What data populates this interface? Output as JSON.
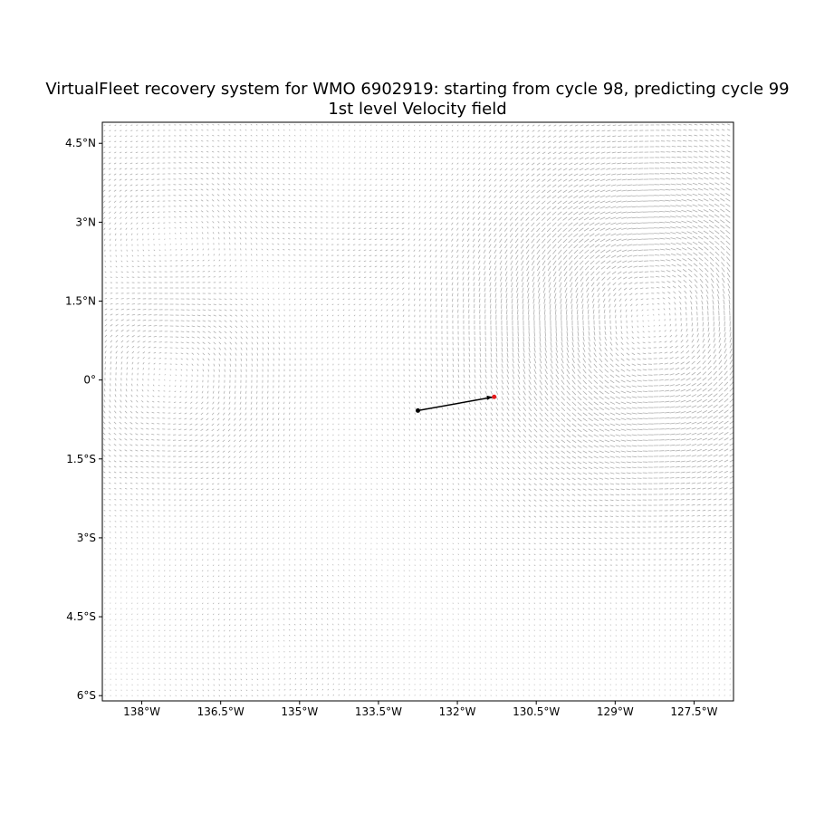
{
  "title_line1": "VirtualFleet recovery system for WMO 6902919: starting from cycle 98, predicting cycle 99",
  "title_line2": "1st level Velocity field",
  "map": {
    "lon_range": [
      -138.75,
      -126.75
    ],
    "lat_range": [
      -6.1,
      4.9
    ],
    "x_ticks": [
      {
        "value": -138.0,
        "label": "138°W"
      },
      {
        "value": -136.5,
        "label": "136.5°W"
      },
      {
        "value": -135.0,
        "label": "135°W"
      },
      {
        "value": -133.5,
        "label": "133.5°W"
      },
      {
        "value": -132.0,
        "label": "132°W"
      },
      {
        "value": -130.5,
        "label": "130.5°W"
      },
      {
        "value": -129.0,
        "label": "129°W"
      },
      {
        "value": -127.5,
        "label": "127.5°W"
      }
    ],
    "y_ticks": [
      {
        "value": 4.5,
        "label": "4.5°N"
      },
      {
        "value": 3.0,
        "label": "3°N"
      },
      {
        "value": 1.5,
        "label": "1.5°N"
      },
      {
        "value": 0.0,
        "label": "0°"
      },
      {
        "value": -1.5,
        "label": "1.5°S"
      },
      {
        "value": -3.0,
        "label": "3°S"
      },
      {
        "value": -4.5,
        "label": "4.5°S"
      },
      {
        "value": -6.0,
        "label": "6°S"
      }
    ]
  },
  "trajectory": {
    "start": {
      "lon": -132.75,
      "lat": -0.58
    },
    "end": {
      "lon": -131.3,
      "lat": -0.32
    },
    "start_color": "#000000",
    "end_color": "#e41a1c",
    "line_color": "#000000"
  },
  "velocity_field": {
    "arrow_color": "#b0b0b0",
    "eddies": [
      {
        "lon": -128.3,
        "lat": 1.2,
        "strength": 1.0,
        "radius": 2.0
      },
      {
        "lon": -137.5,
        "lat": 0.15,
        "strength": -0.7,
        "radius": 1.3
      },
      {
        "lon": -137.5,
        "lat": 2.8,
        "strength": 0.5,
        "radius": 1.2
      },
      {
        "lon": -135.5,
        "lat": -5.2,
        "strength": 0.25,
        "radius": 1.0
      }
    ]
  }
}
